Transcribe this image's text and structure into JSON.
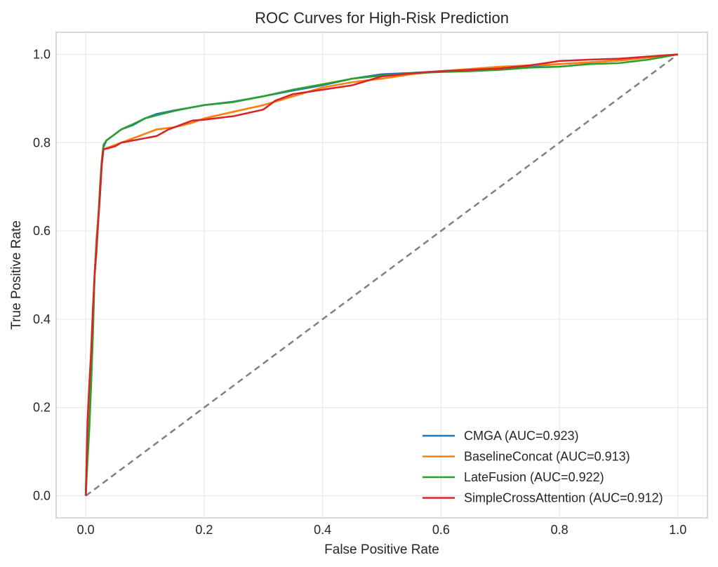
{
  "chart_data": {
    "type": "line",
    "title": "ROC Curves for High-Risk Prediction",
    "xlabel": "False Positive Rate",
    "ylabel": "True Positive Rate",
    "xlim": [
      -0.05,
      1.05
    ],
    "ylim": [
      -0.05,
      1.05
    ],
    "xticks": [
      "0.0",
      "0.2",
      "0.4",
      "0.6",
      "0.8",
      "1.0"
    ],
    "yticks": [
      "0.0",
      "0.2",
      "0.4",
      "0.6",
      "0.8",
      "1.0"
    ],
    "grid": true,
    "legend_position": "lower-right",
    "reference_line": {
      "x": [
        0,
        1
      ],
      "y": [
        0,
        1
      ],
      "style": "dashed",
      "color": "#808080"
    },
    "series": [
      {
        "name": "CMGA (AUC=0.923)",
        "color": "#1f77b4",
        "x": [
          0,
          0.003,
          0.006,
          0.009,
          0.012,
          0.015,
          0.018,
          0.021,
          0.024,
          0.027,
          0.03,
          0.035,
          0.04,
          0.05,
          0.06,
          0.07,
          0.08,
          0.1,
          0.12,
          0.15,
          0.18,
          0.2,
          0.25,
          0.3,
          0.35,
          0.4,
          0.45,
          0.5,
          0.55,
          0.6,
          0.65,
          0.7,
          0.75,
          0.8,
          0.85,
          0.9,
          0.95,
          1.0
        ],
        "y": [
          0,
          0.1,
          0.2,
          0.3,
          0.4,
          0.5,
          0.58,
          0.63,
          0.68,
          0.75,
          0.79,
          0.805,
          0.81,
          0.82,
          0.83,
          0.835,
          0.84,
          0.855,
          0.865,
          0.873,
          0.88,
          0.885,
          0.893,
          0.905,
          0.918,
          0.93,
          0.945,
          0.955,
          0.958,
          0.962,
          0.966,
          0.969,
          0.973,
          0.978,
          0.982,
          0.986,
          0.993,
          1.0
        ]
      },
      {
        "name": "BaselineConcat (AUC=0.913)",
        "color": "#ff7f0e",
        "x": [
          0,
          0.003,
          0.006,
          0.009,
          0.012,
          0.015,
          0.018,
          0.021,
          0.024,
          0.027,
          0.03,
          0.04,
          0.05,
          0.06,
          0.08,
          0.1,
          0.12,
          0.15,
          0.18,
          0.2,
          0.25,
          0.3,
          0.35,
          0.4,
          0.45,
          0.5,
          0.55,
          0.6,
          0.65,
          0.7,
          0.75,
          0.8,
          0.85,
          0.9,
          0.95,
          1.0
        ],
        "y": [
          0,
          0.15,
          0.25,
          0.33,
          0.42,
          0.5,
          0.57,
          0.63,
          0.69,
          0.76,
          0.785,
          0.79,
          0.795,
          0.8,
          0.81,
          0.82,
          0.83,
          0.835,
          0.845,
          0.855,
          0.87,
          0.885,
          0.905,
          0.925,
          0.937,
          0.945,
          0.955,
          0.962,
          0.967,
          0.972,
          0.975,
          0.978,
          0.982,
          0.986,
          0.993,
          1.0
        ]
      },
      {
        "name": "LateFusion (AUC=0.922)",
        "color": "#2ca02c",
        "x": [
          0,
          0.003,
          0.006,
          0.009,
          0.012,
          0.015,
          0.018,
          0.021,
          0.024,
          0.027,
          0.03,
          0.035,
          0.04,
          0.05,
          0.06,
          0.07,
          0.08,
          0.1,
          0.12,
          0.15,
          0.18,
          0.2,
          0.25,
          0.3,
          0.35,
          0.4,
          0.45,
          0.5,
          0.55,
          0.6,
          0.65,
          0.7,
          0.75,
          0.8,
          0.85,
          0.9,
          0.95,
          1.0
        ],
        "y": [
          0,
          0.08,
          0.15,
          0.25,
          0.36,
          0.5,
          0.55,
          0.62,
          0.7,
          0.76,
          0.795,
          0.805,
          0.81,
          0.82,
          0.83,
          0.836,
          0.842,
          0.855,
          0.862,
          0.872,
          0.88,
          0.885,
          0.892,
          0.905,
          0.92,
          0.932,
          0.945,
          0.952,
          0.957,
          0.96,
          0.962,
          0.965,
          0.97,
          0.972,
          0.978,
          0.98,
          0.988,
          1.0
        ]
      },
      {
        "name": "SimpleCrossAttention (AUC=0.912)",
        "color": "#d62728",
        "x": [
          0,
          0.003,
          0.006,
          0.009,
          0.012,
          0.015,
          0.018,
          0.021,
          0.024,
          0.027,
          0.03,
          0.04,
          0.05,
          0.06,
          0.08,
          0.1,
          0.12,
          0.14,
          0.16,
          0.18,
          0.2,
          0.25,
          0.3,
          0.32,
          0.35,
          0.4,
          0.45,
          0.5,
          0.55,
          0.6,
          0.65,
          0.7,
          0.75,
          0.8,
          0.85,
          0.9,
          0.95,
          1.0
        ],
        "y": [
          0,
          0.17,
          0.25,
          0.32,
          0.42,
          0.5,
          0.56,
          0.62,
          0.68,
          0.75,
          0.785,
          0.788,
          0.792,
          0.8,
          0.805,
          0.81,
          0.815,
          0.83,
          0.84,
          0.85,
          0.852,
          0.86,
          0.875,
          0.895,
          0.91,
          0.92,
          0.93,
          0.95,
          0.957,
          0.962,
          0.965,
          0.968,
          0.975,
          0.985,
          0.988,
          0.99,
          0.995,
          1.0
        ]
      }
    ]
  }
}
